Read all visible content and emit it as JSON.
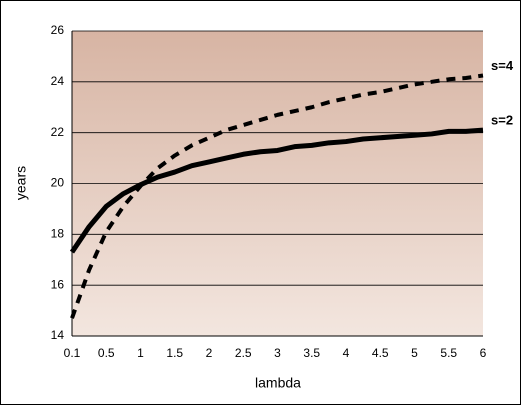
{
  "chart_data": {
    "type": "line",
    "x_label": "lambda",
    "y_label": "years",
    "categories": [
      "0.1",
      null,
      "0.5",
      null,
      "1",
      null,
      "1.5",
      null,
      "2",
      null,
      "2.5",
      null,
      "3",
      null,
      "3.5",
      null,
      "4",
      null,
      "4.5",
      null,
      "5",
      null,
      "5.5",
      null,
      "6"
    ],
    "series": [
      {
        "name": "s=4",
        "color": "#000000",
        "dashed": true,
        "values": [
          14.7,
          16.6,
          18.1,
          19.1,
          19.9,
          20.6,
          21.1,
          21.5,
          21.8,
          22.1,
          22.3,
          22.5,
          22.7,
          22.85,
          23.0,
          23.2,
          23.35,
          23.5,
          23.6,
          23.75,
          23.9,
          24.0,
          24.1,
          24.15,
          24.25
        ]
      },
      {
        "name": "s=2",
        "color": "#000000",
        "dashed": false,
        "values": [
          17.3,
          18.3,
          19.1,
          19.6,
          19.95,
          20.25,
          20.45,
          20.7,
          20.85,
          21.0,
          21.15,
          21.25,
          21.3,
          21.45,
          21.5,
          21.6,
          21.65,
          21.75,
          21.8,
          21.85,
          21.9,
          21.95,
          22.05,
          22.05,
          22.1
        ]
      }
    ],
    "ylim": [
      14,
      26
    ],
    "yticks": [
      14,
      16,
      18,
      20,
      22,
      24,
      26
    ],
    "grid": true
  }
}
